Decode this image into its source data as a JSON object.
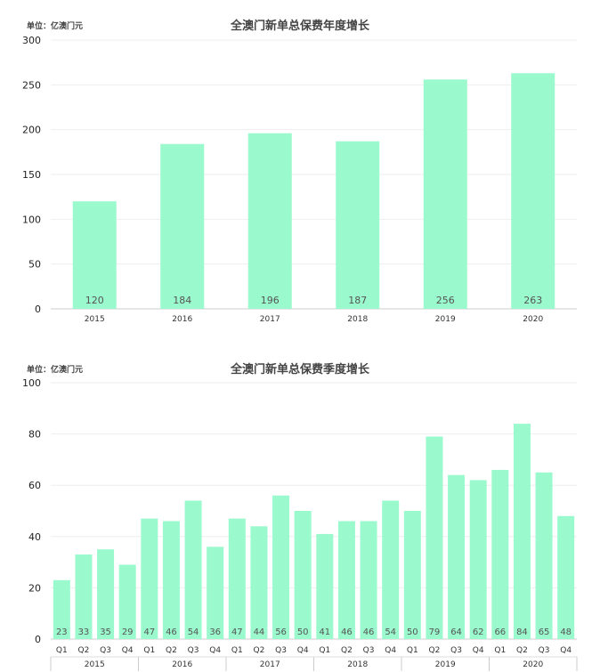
{
  "chart_data": [
    {
      "type": "bar",
      "title": "全澳门新单总保费年度增长",
      "unit_label": "单位：亿澳门元",
      "categories": [
        "2015",
        "2016",
        "2017",
        "2018",
        "2019",
        "2020"
      ],
      "values": [
        120,
        184,
        196,
        187,
        256,
        263
      ],
      "data_labels": [
        "120",
        "184",
        "196",
        "187",
        "256",
        "263"
      ],
      "ylim": [
        0,
        300
      ],
      "yticks": [
        "0",
        "50",
        "100",
        "150",
        "200",
        "250",
        "300"
      ],
      "grid": true,
      "bar_color": "#9af9cd"
    },
    {
      "type": "bar",
      "title": "全澳门新单总保费季度增长",
      "unit_label": "单位：亿澳门元",
      "categories": [
        "Q1",
        "Q2",
        "Q3",
        "Q4",
        "Q1",
        "Q2",
        "Q3",
        "Q4",
        "Q1",
        "Q2",
        "Q3",
        "Q4",
        "Q1",
        "Q2",
        "Q3",
        "Q4",
        "Q1",
        "Q2",
        "Q3",
        "Q4",
        "Q1",
        "Q2",
        "Q3",
        "Q4"
      ],
      "groups": [
        "2015",
        "2016",
        "2017",
        "2018",
        "2019",
        "2020"
      ],
      "values": [
        23,
        33,
        35,
        29,
        47,
        46,
        54,
        36,
        47,
        44,
        56,
        50,
        41,
        46,
        46,
        54,
        50,
        79,
        64,
        62,
        66,
        84,
        65,
        48
      ],
      "data_labels": [
        "23",
        "33",
        "35",
        "29",
        "47",
        "46",
        "54",
        "36",
        "47",
        "44",
        "56",
        "50",
        "41",
        "46",
        "46",
        "54",
        "50",
        "79",
        "64",
        "62",
        "66",
        "84",
        "65",
        "48"
      ],
      "ylim": [
        0,
        100
      ],
      "yticks": [
        "0",
        "20",
        "40",
        "60",
        "80",
        "100"
      ],
      "grid": true,
      "bar_color": "#9af9cd"
    }
  ]
}
